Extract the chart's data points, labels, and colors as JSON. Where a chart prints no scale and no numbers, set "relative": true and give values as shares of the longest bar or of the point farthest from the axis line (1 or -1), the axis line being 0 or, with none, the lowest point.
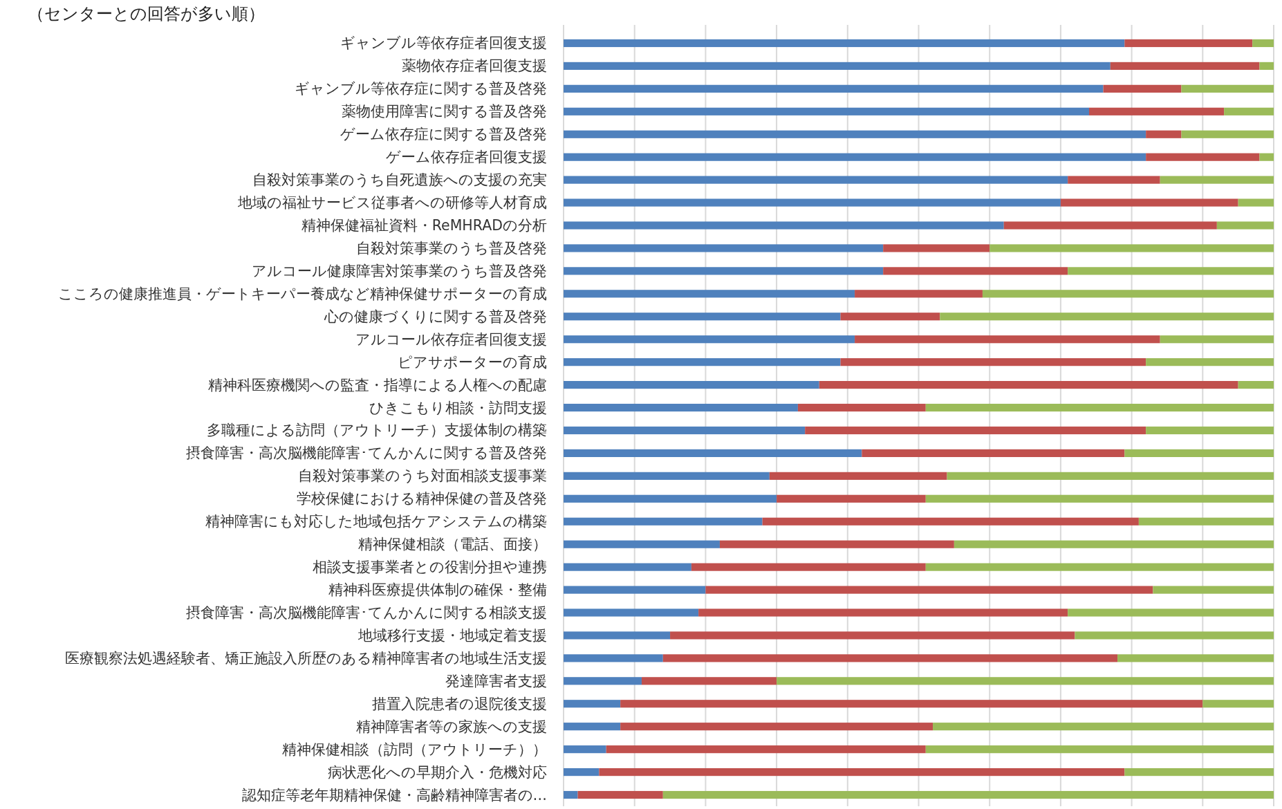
{
  "chart_data": {
    "type": "bar",
    "orientation": "horizontal",
    "stacked": true,
    "relative": true,
    "grid": "x",
    "title": "（センターとの回答が多い順）",
    "categories": [
      "ギャンブル等依存症者回復支援",
      "薬物依存症者回復支援",
      "ギャンブル等依存症に関する普及啓発",
      "薬物使用障害に関する普及啓発",
      "ゲーム依存症に関する普及啓発",
      "ゲーム依存症者回復支援",
      "自殺対策事業のうち自死遺族への支援の充実",
      "地域の福祉サービス従事者への研修等人材育成",
      "精神保健福祉資料・ReMHRADの分析",
      "自殺対策事業のうち普及啓発",
      "アルコール健康障害対策事業のうち普及啓発",
      "こころの健康推進員・ゲートキーパー養成など精神保健サポーターの育成",
      "心の健康づくりに関する普及啓発",
      "アルコール依存症者回復支援",
      "ピアサポーターの育成",
      "精神科医療機関への監査・指導による人権への配慮",
      "ひきこもり相談・訪問支援",
      "多職種による訪問（アウトリーチ）支援体制の構築",
      "摂食障害・高次脳機能障害･てんかんに関する普及啓発",
      "自殺対策事業のうち対面相談支援事業",
      "学校保健における精神保健の普及啓発",
      "精神障害にも対応した地域包括ケアシステムの構築",
      "精神保健相談（電話、面接）",
      "相談支援事業者との役割分担や連携",
      "精神科医療提供体制の確保・整備",
      "摂食障害・高次脳機能障害･てんかんに関する相談支援",
      "地域移行支援・地域定着支援",
      "医療観察法処遇経験者、矯正施設入所歴のある精神障害者の地域生活支援",
      "発達障害者支援",
      "措置入院患者の退院後支援",
      "精神障害者等の家族への支援",
      "精神保健相談（訪問（アウトリーチ））",
      "病状悪化への早期介入・危機対応",
      "認知症等老年期精神保健・高齢精神障害者の…"
    ],
    "series": [
      {
        "color": "#4f81bd",
        "values": [
          0.79,
          0.77,
          0.76,
          0.74,
          0.82,
          0.82,
          0.71,
          0.7,
          0.62,
          0.45,
          0.45,
          0.41,
          0.39,
          0.41,
          0.39,
          0.36,
          0.33,
          0.34,
          0.42,
          0.29,
          0.3,
          0.28,
          0.22,
          0.18,
          0.2,
          0.19,
          0.15,
          0.14,
          0.11,
          0.08,
          0.08,
          0.06,
          0.05,
          0.02
        ]
      },
      {
        "color": "#c0504d",
        "values": [
          0.18,
          0.21,
          0.11,
          0.19,
          0.05,
          0.16,
          0.13,
          0.25,
          0.3,
          0.15,
          0.26,
          0.18,
          0.14,
          0.43,
          0.43,
          0.59,
          0.18,
          0.48,
          0.37,
          0.25,
          0.21,
          0.53,
          0.33,
          0.33,
          0.63,
          0.52,
          0.57,
          0.64,
          0.19,
          0.82,
          0.44,
          0.45,
          0.74,
          0.12
        ]
      },
      {
        "color": "#9bbb59",
        "values": [
          0.03,
          0.02,
          0.13,
          0.07,
          0.13,
          0.02,
          0.16,
          0.05,
          0.08,
          0.4,
          0.29,
          0.41,
          0.47,
          0.16,
          0.18,
          0.05,
          0.49,
          0.18,
          0.21,
          0.46,
          0.49,
          0.19,
          0.45,
          0.49,
          0.17,
          0.29,
          0.28,
          0.22,
          0.7,
          0.1,
          0.48,
          0.49,
          0.21,
          0.86
        ]
      }
    ]
  }
}
